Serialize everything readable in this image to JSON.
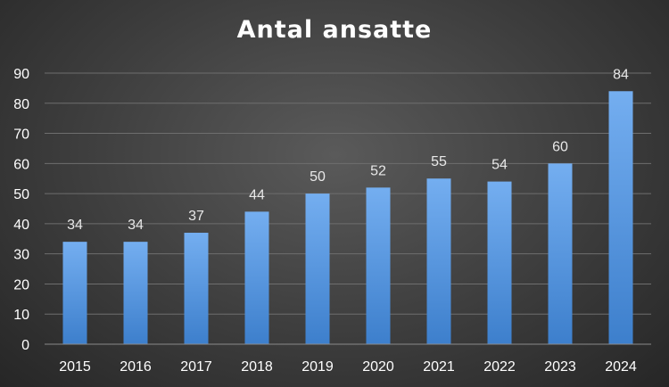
{
  "chart_data": {
    "type": "bar",
    "title": "Antal ansatte",
    "categories": [
      "2015",
      "2016",
      "2017",
      "2018",
      "2019",
      "2020",
      "2021",
      "2022",
      "2023",
      "2024"
    ],
    "values": [
      34,
      34,
      37,
      44,
      50,
      52,
      55,
      54,
      60,
      84
    ],
    "xlabel": "",
    "ylabel": "",
    "ylim": [
      0,
      90
    ],
    "yticks": [
      0,
      10,
      20,
      30,
      40,
      50,
      60,
      70,
      80,
      90
    ],
    "grid": true,
    "legend": "none",
    "data_labels": true
  },
  "colors": {
    "bar_top": "#74aef0",
    "bar_bottom": "#3d7fcc",
    "gridline": "#6e6e6e",
    "axis": "#8a8a8a",
    "text": "#ffffff"
  }
}
